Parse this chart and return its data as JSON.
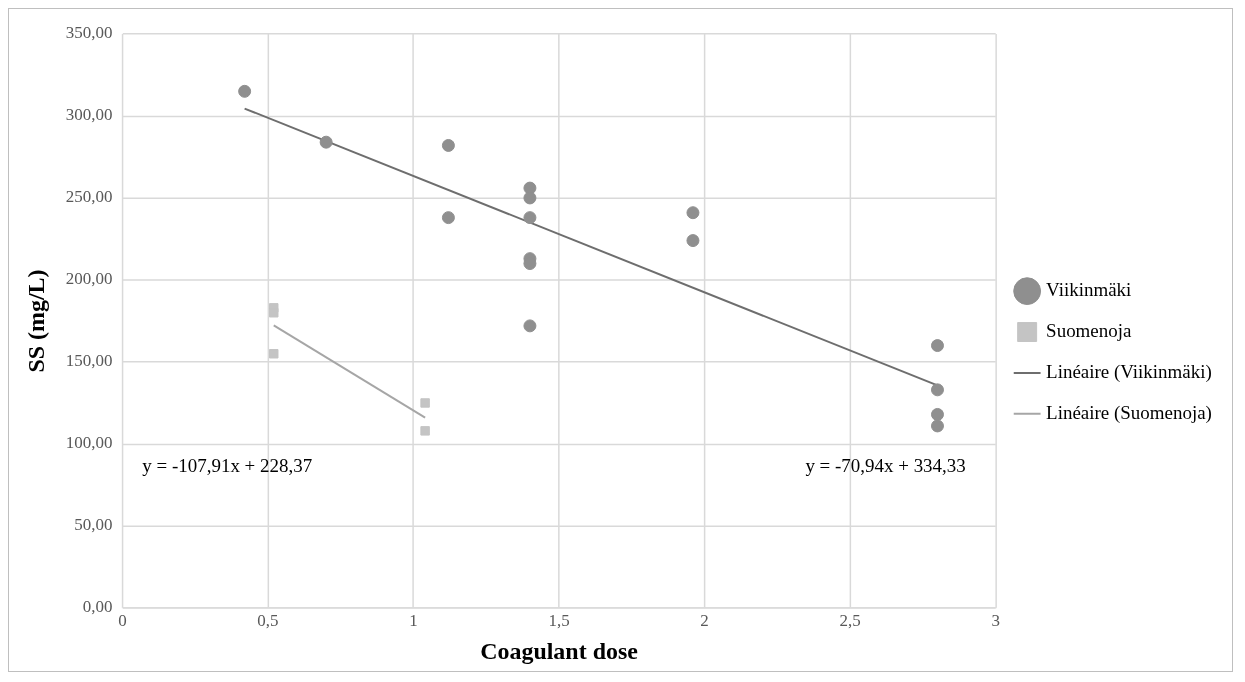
{
  "chart_data": {
    "type": "scatter",
    "xlabel": "Coagulant dose",
    "ylabel": "SS (mg/L)",
    "xlim": [
      0,
      3
    ],
    "xticks": [
      0,
      {
        "value": 0.5,
        "label": "0,5"
      },
      1,
      {
        "value": 1.5,
        "label": "1,5"
      },
      2,
      {
        "value": 2.5,
        "label": "2,5"
      },
      3
    ],
    "ylim": [
      0,
      350
    ],
    "yticks": [
      {
        "value": 0,
        "label": "0,00"
      },
      {
        "value": 50,
        "label": "50,00"
      },
      {
        "value": 100,
        "label": "100,00"
      },
      {
        "value": 150,
        "label": "150,00"
      },
      {
        "value": 200,
        "label": "200,00"
      },
      {
        "value": 250,
        "label": "250,00"
      },
      {
        "value": 300,
        "label": "300,00"
      },
      {
        "value": 350,
        "label": "350,00"
      }
    ],
    "grid": true,
    "legend": "right",
    "series": [
      {
        "name": "Viikinmäki",
        "type": "scatter",
        "marker": "circle",
        "color": "#8f8f8f",
        "x": [
          0.42,
          0.7,
          1.12,
          1.12,
          1.4,
          1.4,
          1.4,
          1.4,
          1.4,
          1.4,
          1.96,
          1.96,
          2.8,
          2.8,
          2.8,
          2.8
        ],
        "values": [
          315,
          284,
          282,
          238,
          256,
          250,
          238,
          213,
          210,
          172,
          241,
          224,
          160,
          133,
          118,
          111
        ]
      },
      {
        "name": "Suomenoja",
        "type": "scatter",
        "marker": "square",
        "color": "#c4c4c4",
        "x": [
          0.52,
          0.52,
          0.52,
          1.04,
          1.04
        ],
        "values": [
          183,
          180,
          155,
          125,
          108
        ]
      },
      {
        "name": "Linéaire (Viikinmäki)",
        "type": "line",
        "marker": "none",
        "color": "#6e6e6e",
        "x": [
          0.42,
          2.8
        ],
        "values": [
          304.5,
          135.7
        ]
      },
      {
        "name": "Linéaire (Suomenoja)",
        "type": "line",
        "marker": "none",
        "color": "#a6a6a6",
        "x": [
          0.52,
          1.04
        ],
        "values": [
          172.3,
          116.1
        ]
      }
    ],
    "annotations": [
      "y = -107,91x + 228,37",
      "y = -70,94x + 334,33"
    ]
  }
}
